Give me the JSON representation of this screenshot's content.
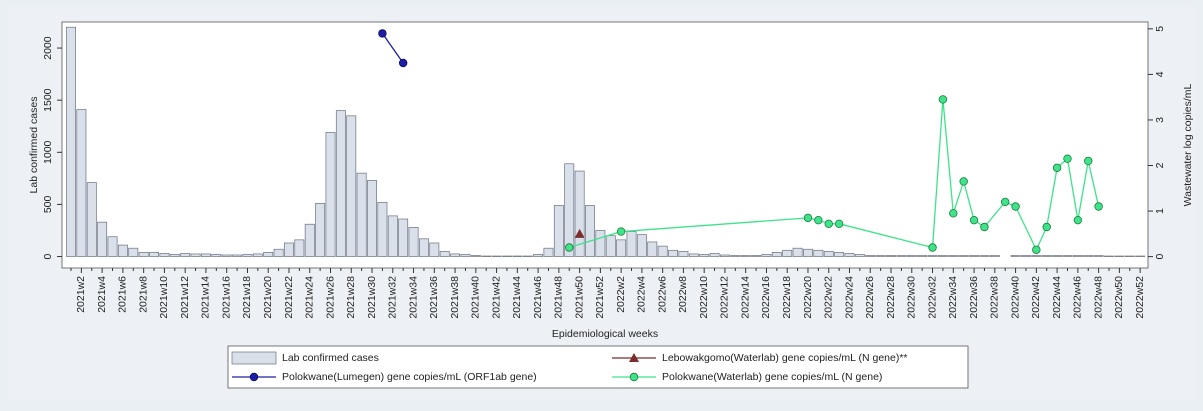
{
  "chart_data": {
    "type": "bar-line",
    "y_label": "Lab confirmed cases",
    "y2_label": "Wastewater log copies/mL",
    "x_label": "Epidemiological weeks",
    "ylim": [
      -110,
      2250
    ],
    "yticks": [
      0,
      500,
      1000,
      1500,
      2000
    ],
    "y2lim": [
      -0.25,
      5.15
    ],
    "y2ticks": [
      0,
      1,
      2,
      3,
      4,
      5
    ],
    "categories": [
      null,
      "2021w2",
      null,
      "2021w4",
      null,
      "2021w6",
      null,
      "2021w8",
      null,
      "2021w10",
      null,
      "2021w12",
      null,
      "2021w14",
      null,
      "2021w16",
      null,
      "2021w18",
      null,
      "2021w20",
      null,
      "2021w22",
      null,
      "2021w24",
      null,
      "2021w26",
      null,
      "2021w28",
      null,
      "2021w30",
      null,
      "2021w32",
      null,
      "2021w34",
      null,
      "2021w36",
      null,
      "2021w38",
      null,
      "2021w40",
      null,
      "2021w42",
      null,
      "2021w44",
      null,
      "2021w46",
      null,
      "2021w48",
      null,
      "2021w50",
      null,
      "2021w52",
      null,
      "2022w2",
      null,
      "2022w4",
      null,
      "2022w6",
      null,
      "2022w8",
      null,
      "2022w10",
      null,
      "2022w12",
      null,
      "2022w14",
      null,
      "2022w16",
      null,
      "2022w18",
      null,
      "2022w20",
      null,
      "2022w22",
      null,
      "2022w24",
      null,
      "2022w26",
      null,
      "2022w28",
      null,
      "2022w30",
      null,
      "2022w32",
      null,
      "2022w34",
      null,
      "2022w36",
      null,
      "2022w38",
      null,
      "2022w40",
      null,
      "2022w42",
      null,
      "2022w44",
      null,
      "2022w46",
      null,
      "2022w48",
      null,
      "2022w50",
      null,
      "2022w52"
    ],
    "series": [
      {
        "name": "Lab confirmed cases",
        "type": "bar",
        "color": "#dae0ea",
        "values": [
          2200,
          1410,
          710,
          330,
          190,
          110,
          80,
          40,
          40,
          30,
          20,
          30,
          25,
          25,
          20,
          15,
          15,
          20,
          25,
          40,
          70,
          130,
          160,
          310,
          510,
          1190,
          1400,
          1350,
          800,
          730,
          520,
          390,
          360,
          280,
          170,
          130,
          50,
          25,
          20,
          10,
          5,
          5,
          5,
          5,
          5,
          20,
          80,
          490,
          890,
          820,
          490,
          250,
          200,
          160,
          240,
          210,
          140,
          100,
          60,
          50,
          25,
          20,
          30,
          15,
          10,
          10,
          10,
          20,
          40,
          60,
          80,
          70,
          60,
          50,
          40,
          30,
          20,
          10,
          10,
          10,
          10,
          10,
          10,
          10,
          10,
          10,
          10,
          10,
          10,
          10,
          0,
          10,
          10,
          10,
          10,
          10,
          10,
          10,
          10,
          10,
          5,
          5,
          5,
          5
        ]
      },
      {
        "name": "Lebowakgomo(Waterlab) gene copies/mL (N gene)**",
        "type": "marker",
        "color": "#7a2e2e",
        "axis": "y2",
        "values": [
          null,
          null,
          null,
          null,
          null,
          null,
          null,
          null,
          null,
          null,
          null,
          null,
          null,
          null,
          null,
          null,
          null,
          null,
          null,
          null,
          null,
          null,
          null,
          null,
          null,
          null,
          null,
          null,
          null,
          null,
          null,
          null,
          null,
          null,
          null,
          null,
          null,
          null,
          null,
          null,
          null,
          null,
          null,
          null,
          null,
          null,
          null,
          null,
          null,
          0.5,
          null,
          null,
          null,
          null,
          null,
          null,
          null,
          null,
          null,
          null,
          null,
          null,
          null,
          null,
          null,
          null,
          null,
          null,
          null,
          null,
          null,
          null,
          null,
          null,
          null,
          null,
          null,
          null,
          null,
          null,
          null,
          null,
          null,
          null,
          null,
          null,
          null,
          null,
          null,
          null,
          null,
          null,
          null,
          null,
          null,
          null,
          null,
          null,
          null,
          null,
          null,
          null,
          null,
          null
        ]
      },
      {
        "name": "Polokwane(Lumegen) gene copies/mL (ORF1ab gene)",
        "type": "line",
        "color": "#1c1fa6",
        "axis": "y2",
        "values": [
          null,
          null,
          null,
          null,
          null,
          null,
          null,
          null,
          null,
          null,
          null,
          null,
          null,
          null,
          null,
          null,
          null,
          null,
          null,
          null,
          null,
          null,
          null,
          null,
          null,
          null,
          null,
          null,
          null,
          null,
          4.9,
          null,
          4.25,
          null,
          null,
          null,
          null,
          null,
          null,
          null,
          null,
          null,
          null,
          null,
          null,
          null,
          null,
          null,
          null,
          null,
          null,
          null,
          null,
          null,
          null,
          null,
          null,
          null,
          null,
          null,
          null,
          null,
          null,
          null,
          null,
          null,
          null,
          null,
          null,
          null,
          null,
          null,
          null,
          null,
          null,
          null,
          null,
          null,
          null,
          null,
          null,
          null,
          null,
          null,
          null,
          null,
          null,
          null,
          null,
          null,
          null,
          null,
          null,
          null,
          null,
          null,
          null,
          null,
          null,
          null,
          null,
          null,
          null,
          null
        ]
      },
      {
        "name": "Polokwane(Waterlab) gene copies/mL (N gene)",
        "type": "line",
        "color": "#3ee38a",
        "axis": "y2",
        "values": [
          null,
          null,
          null,
          null,
          null,
          null,
          null,
          null,
          null,
          null,
          null,
          null,
          null,
          null,
          null,
          null,
          null,
          null,
          null,
          null,
          null,
          null,
          null,
          null,
          null,
          null,
          null,
          null,
          null,
          null,
          null,
          null,
          null,
          null,
          null,
          null,
          null,
          null,
          null,
          null,
          null,
          null,
          null,
          null,
          null,
          null,
          null,
          null,
          0.2,
          null,
          null,
          null,
          null,
          0.55,
          null,
          null,
          null,
          null,
          null,
          null,
          null,
          null,
          null,
          null,
          null,
          null,
          null,
          null,
          null,
          null,
          null,
          0.85,
          0.8,
          0.72,
          0.72,
          null,
          null,
          null,
          null,
          null,
          null,
          null,
          null,
          0.2,
          3.45,
          0.95,
          1.65,
          0.8,
          0.65,
          null,
          1.2,
          1.1,
          null,
          0.15,
          0.65,
          1.95,
          2.15,
          0.8,
          2.1,
          1.1,
          null,
          null,
          null,
          null
        ]
      }
    ]
  }
}
